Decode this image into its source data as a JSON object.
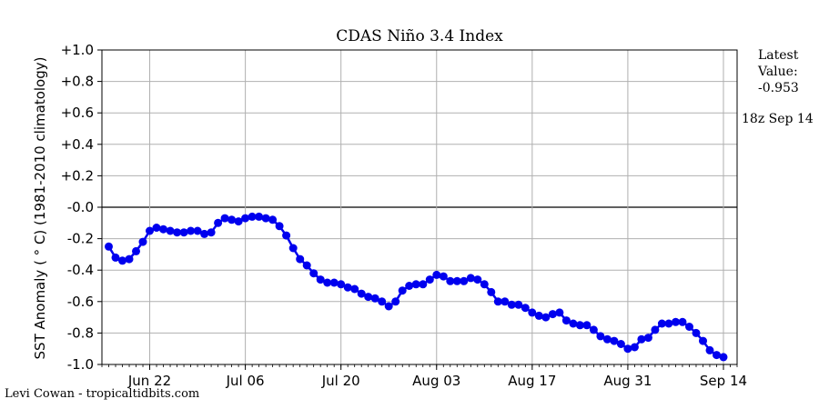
{
  "chart_data": {
    "type": "line",
    "title": "CDAS Niño 3.4 Index",
    "ylabel": "SST Anomaly ( ° C) (1981-2010 climatology)",
    "xlabel": "",
    "ylim": [
      -1.0,
      1.0
    ],
    "yticks": [
      1.0,
      0.8,
      0.6,
      0.4,
      0.2,
      0.0,
      -0.2,
      -0.4,
      -0.6,
      -0.8,
      -1.0
    ],
    "ytick_labels": [
      "+1.0",
      "+0.8",
      "+0.6",
      "+0.4",
      "+0.2",
      "-0.0",
      "-0.2",
      "-0.4",
      "-0.6",
      "-0.8",
      "-1.0"
    ],
    "xlim": [
      "2019-06-15",
      "2019-09-16"
    ],
    "xticks": [
      "2019-06-22",
      "2019-07-06",
      "2019-07-20",
      "2019-08-03",
      "2019-08-17",
      "2019-08-31",
      "2019-09-14"
    ],
    "xtick_labels": [
      "Jun 22",
      "Jul 06",
      "Jul 20",
      "Aug 03",
      "Aug 17",
      "Aug 31",
      "Sep 14"
    ],
    "grid": true,
    "marker": "circle",
    "color": "#0000ee",
    "series": [
      {
        "x": [
          "2019-06-16",
          "2019-06-17",
          "2019-06-18",
          "2019-06-19",
          "2019-06-20",
          "2019-06-21",
          "2019-06-22",
          "2019-06-23",
          "2019-06-24",
          "2019-06-25",
          "2019-06-26",
          "2019-06-27",
          "2019-06-28",
          "2019-06-29",
          "2019-06-30",
          "2019-07-01",
          "2019-07-02",
          "2019-07-03",
          "2019-07-04",
          "2019-07-05",
          "2019-07-06",
          "2019-07-07",
          "2019-07-08",
          "2019-07-09",
          "2019-07-10",
          "2019-07-11",
          "2019-07-12",
          "2019-07-13",
          "2019-07-14",
          "2019-07-15",
          "2019-07-16",
          "2019-07-17",
          "2019-07-18",
          "2019-07-19",
          "2019-07-20",
          "2019-07-21",
          "2019-07-22",
          "2019-07-23",
          "2019-07-24",
          "2019-07-25",
          "2019-07-26",
          "2019-07-27",
          "2019-07-28",
          "2019-07-29",
          "2019-07-30",
          "2019-07-31",
          "2019-08-01",
          "2019-08-02",
          "2019-08-03",
          "2019-08-04",
          "2019-08-05",
          "2019-08-06",
          "2019-08-07",
          "2019-08-08",
          "2019-08-09",
          "2019-08-10",
          "2019-08-11",
          "2019-08-12",
          "2019-08-13",
          "2019-08-14",
          "2019-08-15",
          "2019-08-16",
          "2019-08-17",
          "2019-08-18",
          "2019-08-19",
          "2019-08-20",
          "2019-08-21",
          "2019-08-22",
          "2019-08-23",
          "2019-08-24",
          "2019-08-25",
          "2019-08-26",
          "2019-08-27",
          "2019-08-28",
          "2019-08-29",
          "2019-08-30",
          "2019-08-31",
          "2019-09-01",
          "2019-09-02",
          "2019-09-03",
          "2019-09-04",
          "2019-09-05",
          "2019-09-06",
          "2019-09-07",
          "2019-09-08",
          "2019-09-09",
          "2019-09-10",
          "2019-09-11",
          "2019-09-12",
          "2019-09-13",
          "2019-09-14"
        ],
        "y": [
          -0.25,
          -0.32,
          -0.34,
          -0.33,
          -0.28,
          -0.22,
          -0.15,
          -0.13,
          -0.14,
          -0.15,
          -0.16,
          -0.16,
          -0.15,
          -0.15,
          -0.17,
          -0.16,
          -0.1,
          -0.07,
          -0.08,
          -0.09,
          -0.07,
          -0.06,
          -0.06,
          -0.07,
          -0.08,
          -0.12,
          -0.18,
          -0.26,
          -0.33,
          -0.37,
          -0.42,
          -0.46,
          -0.48,
          -0.48,
          -0.49,
          -0.51,
          -0.52,
          -0.55,
          -0.57,
          -0.58,
          -0.6,
          -0.63,
          -0.6,
          -0.53,
          -0.5,
          -0.49,
          -0.49,
          -0.46,
          -0.43,
          -0.44,
          -0.47,
          -0.47,
          -0.47,
          -0.45,
          -0.46,
          -0.49,
          -0.54,
          -0.6,
          -0.6,
          -0.62,
          -0.62,
          -0.64,
          -0.67,
          -0.69,
          -0.7,
          -0.68,
          -0.67,
          -0.72,
          -0.74,
          -0.75,
          -0.75,
          -0.78,
          -0.82,
          -0.84,
          -0.85,
          -0.87,
          -0.9,
          -0.89,
          -0.84,
          -0.83,
          -0.78,
          -0.74,
          -0.74,
          -0.73,
          -0.73,
          -0.76,
          -0.8,
          -0.85,
          -0.91,
          -0.94,
          -0.953
        ]
      }
    ]
  },
  "side_panel": {
    "latest_label": "Latest",
    "value_label": "Value:",
    "latest_value": "-0.953",
    "valid_time": "18z Sep 14"
  },
  "credit": "Levi Cowan - tropicaltidbits.com"
}
